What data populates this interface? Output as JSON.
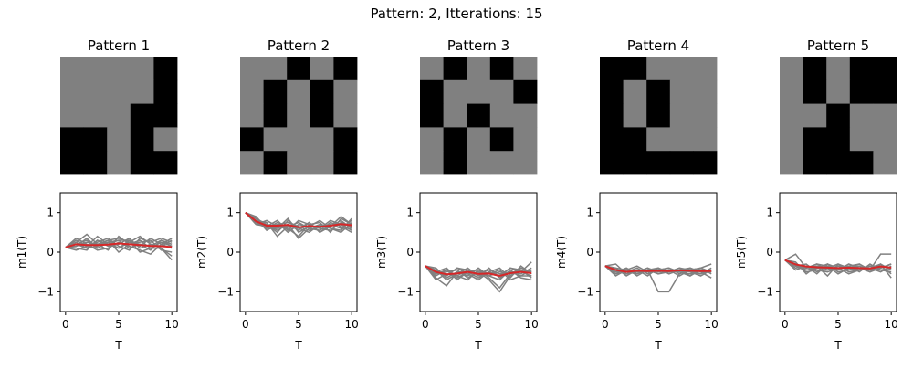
{
  "figure": {
    "suptitle": "Pattern: 2, Itterations: 15"
  },
  "colors": {
    "cell_on": "#000000",
    "cell_off": "#808080",
    "trace": "#808080",
    "mean": "#d62728",
    "axis": "#000000"
  },
  "chart_data": [
    {
      "type": "heatmap",
      "title": "Pattern 1",
      "grid": [
        [
          0,
          0,
          0,
          0,
          1
        ],
        [
          0,
          0,
          0,
          0,
          1
        ],
        [
          0,
          0,
          0,
          1,
          1
        ],
        [
          1,
          1,
          0,
          1,
          0
        ],
        [
          1,
          1,
          0,
          1,
          1
        ]
      ]
    },
    {
      "type": "heatmap",
      "title": "Pattern 2",
      "grid": [
        [
          0,
          0,
          1,
          0,
          1
        ],
        [
          0,
          1,
          0,
          1,
          0
        ],
        [
          0,
          1,
          0,
          1,
          0
        ],
        [
          1,
          0,
          0,
          0,
          1
        ],
        [
          0,
          1,
          0,
          0,
          1
        ]
      ]
    },
    {
      "type": "heatmap",
      "title": "Pattern 3",
      "grid": [
        [
          0,
          1,
          0,
          1,
          0
        ],
        [
          1,
          0,
          0,
          0,
          1
        ],
        [
          1,
          0,
          1,
          0,
          0
        ],
        [
          0,
          1,
          0,
          1,
          0
        ],
        [
          0,
          1,
          0,
          0,
          0
        ]
      ]
    },
    {
      "type": "heatmap",
      "title": "Pattern 4",
      "grid": [
        [
          1,
          1,
          0,
          0,
          0
        ],
        [
          1,
          0,
          1,
          0,
          0
        ],
        [
          1,
          0,
          1,
          0,
          0
        ],
        [
          1,
          1,
          0,
          0,
          0
        ],
        [
          1,
          1,
          1,
          1,
          1
        ]
      ]
    },
    {
      "type": "heatmap",
      "title": "Pattern 5",
      "grid": [
        [
          0,
          1,
          0,
          1,
          1
        ],
        [
          0,
          1,
          0,
          1,
          1
        ],
        [
          0,
          0,
          1,
          0,
          0
        ],
        [
          0,
          1,
          1,
          0,
          0
        ],
        [
          0,
          1,
          1,
          1,
          0
        ]
      ]
    },
    {
      "type": "line",
      "xlabel": "T",
      "ylabel": "m1(T)",
      "xlim": [
        -0.5,
        10.5
      ],
      "ylim": [
        -1.5,
        1.5
      ],
      "xticks": [
        0,
        5,
        10
      ],
      "yticks": [
        -1,
        0,
        1
      ],
      "x": [
        0,
        1,
        2,
        3,
        4,
        5,
        6,
        7,
        8,
        9,
        10
      ],
      "traces": [
        [
          0.12,
          0.25,
          0.45,
          0.2,
          0.3,
          0.35,
          0.25,
          0.4,
          0.2,
          0.15,
          0.3
        ],
        [
          0.12,
          0.3,
          0.15,
          0.4,
          0.2,
          0.1,
          0.3,
          0.15,
          0.35,
          0.2,
          0.1
        ],
        [
          0.12,
          0.2,
          0.3,
          0.1,
          0.25,
          0.3,
          0.1,
          0.2,
          0.15,
          0.3,
          0.2
        ],
        [
          0.12,
          0.1,
          0.05,
          0.3,
          0.15,
          0.2,
          0.35,
          0.1,
          0.2,
          0.1,
          -0.1
        ],
        [
          0.12,
          0.2,
          0.1,
          0.15,
          0.3,
          0.0,
          0.2,
          0.3,
          0.1,
          0.25,
          0.15
        ],
        [
          0.12,
          0.35,
          0.2,
          0.05,
          0.1,
          0.25,
          0.15,
          0.05,
          -0.05,
          0.2,
          0.35
        ],
        [
          0.12,
          0.15,
          0.25,
          0.2,
          0.05,
          0.4,
          0.2,
          0.25,
          0.3,
          0.05,
          0.0
        ],
        [
          0.12,
          0.05,
          0.15,
          0.25,
          0.35,
          0.15,
          0.05,
          0.35,
          0.25,
          0.35,
          0.25
        ],
        [
          0.12,
          0.25,
          0.1,
          0.3,
          0.2,
          0.3,
          0.3,
          0.0,
          0.1,
          0.1,
          -0.2
        ],
        [
          0.12,
          0.15,
          0.35,
          0.1,
          0.25,
          0.1,
          0.25,
          0.2,
          0.05,
          0.3,
          0.15
        ]
      ],
      "mean": [
        0.12,
        0.2,
        0.18,
        0.18,
        0.19,
        0.22,
        0.2,
        0.18,
        0.16,
        0.15,
        0.13
      ]
    },
    {
      "type": "line",
      "xlabel": "T",
      "ylabel": "m2(T)",
      "xlim": [
        -0.5,
        10.5
      ],
      "ylim": [
        -1.5,
        1.5
      ],
      "xticks": [
        0,
        5,
        10
      ],
      "yticks": [
        -1,
        0,
        1
      ],
      "x": [
        0,
        1,
        2,
        3,
        4,
        5,
        6,
        7,
        8,
        9,
        10
      ],
      "traces": [
        [
          1.0,
          0.8,
          0.65,
          0.6,
          0.7,
          0.55,
          0.75,
          0.5,
          0.65,
          0.8,
          0.6
        ],
        [
          1.0,
          0.75,
          0.7,
          0.5,
          0.8,
          0.6,
          0.5,
          0.7,
          0.6,
          0.5,
          0.75
        ],
        [
          1.0,
          0.9,
          0.6,
          0.75,
          0.5,
          0.7,
          0.65,
          0.6,
          0.8,
          0.7,
          0.55
        ],
        [
          1.0,
          0.7,
          0.8,
          0.65,
          0.6,
          0.4,
          0.7,
          0.75,
          0.5,
          0.85,
          0.7
        ],
        [
          1.0,
          0.85,
          0.55,
          0.7,
          0.75,
          0.65,
          0.55,
          0.65,
          0.7,
          0.6,
          0.8
        ],
        [
          1.0,
          0.8,
          0.75,
          0.4,
          0.65,
          0.75,
          0.6,
          0.55,
          0.75,
          0.65,
          0.5
        ],
        [
          1.0,
          0.7,
          0.65,
          0.8,
          0.55,
          0.8,
          0.7,
          0.6,
          0.55,
          0.75,
          0.65
        ],
        [
          1.0,
          0.75,
          0.6,
          0.6,
          0.85,
          0.5,
          0.65,
          0.8,
          0.6,
          0.55,
          0.85
        ],
        [
          1.0,
          0.85,
          0.7,
          0.55,
          0.7,
          0.35,
          0.6,
          0.7,
          0.65,
          0.9,
          0.7
        ],
        [
          1.0,
          0.75,
          0.65,
          0.7,
          0.65,
          0.6,
          0.75,
          0.5,
          0.7,
          0.6,
          0.6
        ]
      ],
      "mean": [
        1.0,
        0.78,
        0.67,
        0.67,
        0.69,
        0.63,
        0.66,
        0.64,
        0.67,
        0.71,
        0.68
      ]
    },
    {
      "type": "line",
      "xlabel": "T",
      "ylabel": "m3(T)",
      "xlim": [
        -0.5,
        10.5
      ],
      "ylim": [
        -1.5,
        1.5
      ],
      "xticks": [
        0,
        5,
        10
      ],
      "yticks": [
        -1,
        0,
        1
      ],
      "x": [
        0,
        1,
        2,
        3,
        4,
        5,
        6,
        7,
        8,
        9,
        10
      ],
      "traces": [
        [
          -0.35,
          -0.5,
          -0.6,
          -0.4,
          -0.55,
          -0.7,
          -0.5,
          -0.6,
          -0.4,
          -0.5,
          -0.6
        ],
        [
          -0.35,
          -0.6,
          -0.45,
          -0.7,
          -0.5,
          -0.45,
          -0.65,
          -0.9,
          -0.55,
          -0.4,
          -0.5
        ],
        [
          -0.35,
          -0.45,
          -0.7,
          -0.55,
          -0.4,
          -0.6,
          -0.55,
          -0.45,
          -0.7,
          -0.6,
          -0.45
        ],
        [
          -0.35,
          -0.55,
          -0.5,
          -0.45,
          -0.65,
          -0.5,
          -0.7,
          -1.0,
          -0.6,
          -0.45,
          -0.65
        ],
        [
          -0.35,
          -0.7,
          -0.55,
          -0.6,
          -0.45,
          -0.55,
          -0.45,
          -0.55,
          -0.5,
          -0.55,
          -0.4
        ],
        [
          -0.35,
          -0.4,
          -0.65,
          -0.5,
          -0.6,
          -0.4,
          -0.6,
          -0.7,
          -0.45,
          -0.65,
          -0.7
        ],
        [
          -0.35,
          -0.5,
          -0.4,
          -0.65,
          -0.5,
          -0.65,
          -0.5,
          -0.4,
          -0.65,
          -0.35,
          -0.55
        ],
        [
          -0.35,
          -0.65,
          -0.85,
          -0.5,
          -0.55,
          -0.5,
          -0.6,
          -0.5,
          -0.55,
          -0.5,
          -0.25
        ],
        [
          -0.35,
          -0.45,
          -0.6,
          -0.4,
          -0.45,
          -0.6,
          -0.4,
          -0.65,
          -0.5,
          -0.6,
          -0.6
        ],
        [
          -0.35,
          -0.55,
          -0.45,
          -0.6,
          -0.7,
          -0.45,
          -0.55,
          -0.6,
          -0.4,
          -0.45,
          -0.5
        ]
      ],
      "mean": [
        -0.35,
        -0.5,
        -0.56,
        -0.54,
        -0.5,
        -0.55,
        -0.54,
        -0.6,
        -0.53,
        -0.5,
        -0.53
      ]
    },
    {
      "type": "line",
      "xlabel": "T",
      "ylabel": "m4(T)",
      "xlim": [
        -0.5,
        10.5
      ],
      "ylim": [
        -1.5,
        1.5
      ],
      "xticks": [
        0,
        5,
        10
      ],
      "yticks": [
        -1,
        0,
        1
      ],
      "x": [
        0,
        1,
        2,
        3,
        4,
        5,
        6,
        7,
        8,
        9,
        10
      ],
      "traces": [
        [
          -0.35,
          -0.5,
          -0.4,
          -0.55,
          -0.45,
          -1.0,
          -1.0,
          -0.55,
          -0.4,
          -0.5,
          -0.45
        ],
        [
          -0.35,
          -0.4,
          -0.6,
          -0.45,
          -0.5,
          -0.4,
          -0.55,
          -0.45,
          -0.6,
          -0.4,
          -0.55
        ],
        [
          -0.35,
          -0.6,
          -0.45,
          -0.5,
          -0.4,
          -0.5,
          -0.45,
          -0.6,
          -0.45,
          -0.55,
          -0.4
        ],
        [
          -0.35,
          -0.45,
          -0.5,
          -0.4,
          -0.55,
          -0.45,
          -0.4,
          -0.5,
          -0.55,
          -0.45,
          -0.5
        ],
        [
          -0.35,
          -0.55,
          -0.4,
          -0.6,
          -0.45,
          -0.55,
          -0.5,
          -0.4,
          -0.5,
          -0.6,
          -0.45
        ],
        [
          -0.35,
          -0.3,
          -0.55,
          -0.45,
          -0.6,
          -0.4,
          -0.55,
          -0.45,
          -0.4,
          -0.5,
          -0.65
        ],
        [
          -0.35,
          -0.5,
          -0.45,
          -0.35,
          -0.5,
          -0.45,
          -0.4,
          -0.55,
          -0.45,
          -0.4,
          -0.3
        ],
        [
          -0.35,
          -0.45,
          -0.55,
          -0.5,
          -0.4,
          -0.55,
          -0.45,
          -0.5,
          -0.6,
          -0.45,
          -0.5
        ],
        [
          -0.35,
          -0.55,
          -0.5,
          -0.55,
          -0.45,
          -0.4,
          -0.5,
          -0.45,
          -0.5,
          -0.55,
          -0.45
        ],
        [
          -0.35,
          -0.4,
          -0.45,
          -0.5,
          -0.5,
          -0.45,
          -0.5,
          -0.4,
          -0.45,
          -0.4,
          -0.5
        ]
      ],
      "mean": [
        -0.35,
        -0.45,
        -0.5,
        -0.47,
        -0.48,
        -0.47,
        -0.48,
        -0.46,
        -0.47,
        -0.48,
        -0.48
      ]
    },
    {
      "type": "line",
      "xlabel": "T",
      "ylabel": "m5(T)",
      "xlim": [
        -0.5,
        10.5
      ],
      "ylim": [
        -1.5,
        1.5
      ],
      "xticks": [
        0,
        5,
        10
      ],
      "yticks": [
        -1,
        0,
        1
      ],
      "x": [
        0,
        1,
        2,
        3,
        4,
        5,
        6,
        7,
        8,
        9,
        10
      ],
      "traces": [
        [
          -0.2,
          -0.05,
          -0.4,
          -0.3,
          -0.45,
          -0.35,
          -0.4,
          -0.3,
          -0.45,
          -0.05,
          -0.05
        ],
        [
          -0.2,
          -0.35,
          -0.3,
          -0.5,
          -0.35,
          -0.45,
          -0.3,
          -0.4,
          -0.35,
          -0.4,
          -0.3
        ],
        [
          -0.2,
          -0.3,
          -0.45,
          -0.4,
          -0.3,
          -0.5,
          -0.45,
          -0.35,
          -0.5,
          -0.3,
          -0.45
        ],
        [
          -0.2,
          -0.25,
          -0.55,
          -0.35,
          -0.4,
          -0.3,
          -0.5,
          -0.45,
          -0.4,
          -0.5,
          -0.35
        ],
        [
          -0.2,
          -0.4,
          -0.35,
          -0.45,
          -0.5,
          -0.4,
          -0.35,
          -0.5,
          -0.3,
          -0.45,
          -0.5
        ],
        [
          -0.2,
          -0.35,
          -0.4,
          -0.3,
          -0.35,
          -0.55,
          -0.4,
          -0.35,
          -0.45,
          -0.35,
          -0.4
        ],
        [
          -0.2,
          -0.3,
          -0.5,
          -0.45,
          -0.45,
          -0.35,
          -0.45,
          -0.4,
          -0.5,
          -0.4,
          -0.3
        ],
        [
          -0.2,
          -0.45,
          -0.35,
          -0.55,
          -0.3,
          -0.4,
          -0.55,
          -0.45,
          -0.35,
          -0.35,
          -0.55
        ],
        [
          -0.2,
          -0.35,
          -0.45,
          -0.4,
          -0.4,
          -0.45,
          -0.35,
          -0.3,
          -0.45,
          -0.45,
          -0.4
        ],
        [
          -0.2,
          -0.3,
          -0.4,
          -0.35,
          -0.6,
          -0.3,
          -0.4,
          -0.45,
          -0.4,
          -0.3,
          -0.65
        ]
      ],
      "mean": [
        -0.2,
        -0.31,
        -0.36,
        -0.38,
        -0.39,
        -0.4,
        -0.39,
        -0.4,
        -0.41,
        -0.36,
        -0.39
      ]
    }
  ]
}
